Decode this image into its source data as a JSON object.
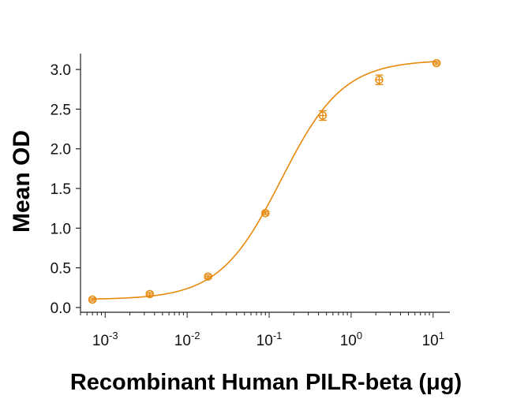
{
  "chart_data": {
    "type": "scatter",
    "title": "",
    "xlabel": "Recombinant Human PILR-beta (μg)",
    "ylabel": "Mean OD",
    "x_scale": "log",
    "xlim": [
      0.0005,
      16
    ],
    "ylim": [
      -0.06,
      3.2
    ],
    "x_ticks": [
      {
        "value": 0.001,
        "base": "10",
        "exp": "-3"
      },
      {
        "value": 0.01,
        "base": "10",
        "exp": "-2"
      },
      {
        "value": 0.1,
        "base": "10",
        "exp": "-1"
      },
      {
        "value": 1,
        "base": "10",
        "exp": "0"
      },
      {
        "value": 10,
        "base": "10",
        "exp": "1"
      }
    ],
    "y_ticks": [
      {
        "value": 0.0,
        "label": "0.0"
      },
      {
        "value": 0.5,
        "label": "0.5"
      },
      {
        "value": 1.0,
        "label": "1.0"
      },
      {
        "value": 1.5,
        "label": "1.5"
      },
      {
        "value": 2.0,
        "label": "2.0"
      },
      {
        "value": 2.5,
        "label": "2.5"
      },
      {
        "value": 3.0,
        "label": "3.0"
      }
    ],
    "series": [
      {
        "color": "#e8890c",
        "x": [
          0.0007,
          0.0035,
          0.018,
          0.09,
          0.45,
          2.2,
          11
        ],
        "y": [
          0.1,
          0.17,
          0.39,
          1.19,
          2.42,
          2.87,
          3.08
        ],
        "error": [
          0.02,
          0.02,
          0.02,
          0.02,
          0.06,
          0.06,
          0.02
        ]
      }
    ],
    "fit": {
      "bottom": 0.1,
      "top": 3.12,
      "ec50": 0.14,
      "hill": 1.15
    },
    "grid": false,
    "legend": "none"
  }
}
